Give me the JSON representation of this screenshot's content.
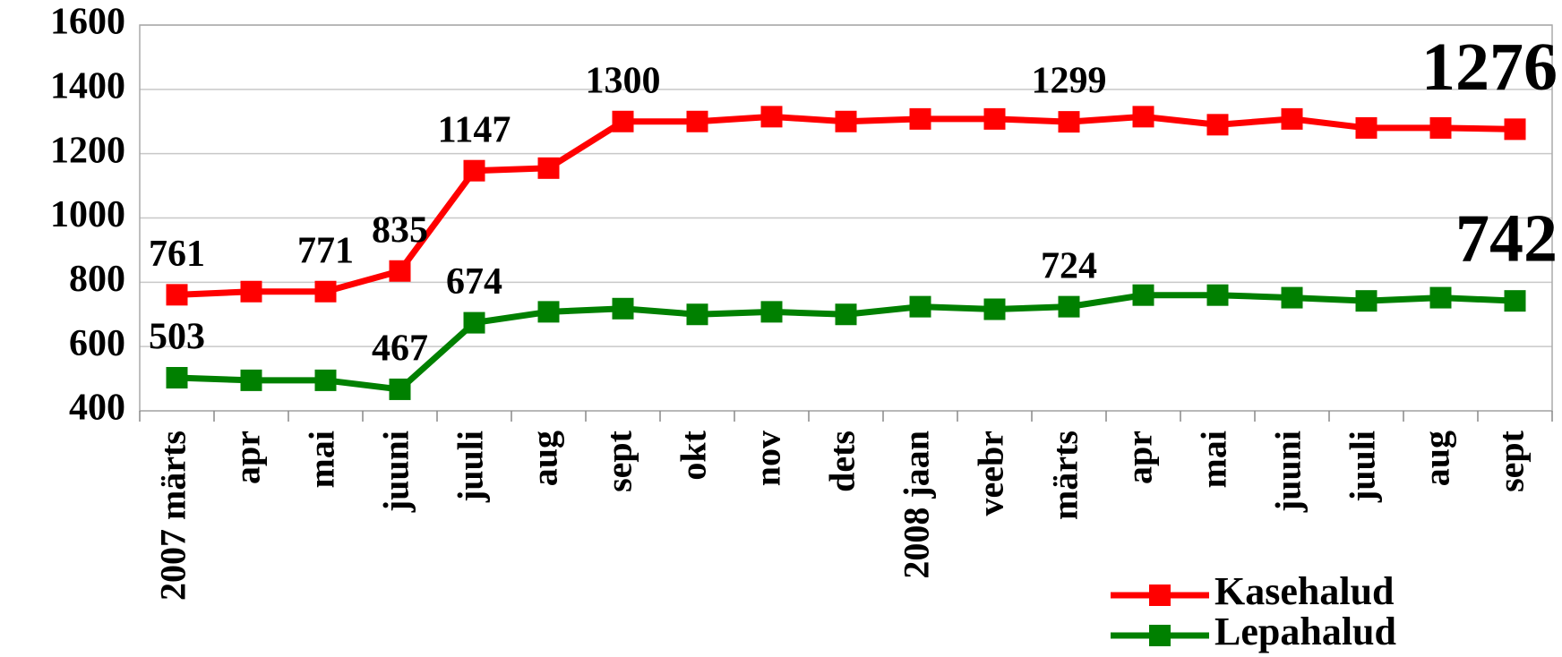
{
  "chart_data": {
    "type": "line",
    "categories": [
      "2007 märts",
      "apr",
      "mai",
      "juuni",
      "juuli",
      "aug",
      "sept",
      "okt",
      "nov",
      "dets",
      "2008 jaan",
      "veebr",
      "märts",
      "apr",
      "mai",
      "juuni",
      "juuli",
      "aug",
      "sept"
    ],
    "series": [
      {
        "name": "Kasehalud",
        "color": "#ff0000",
        "values": [
          761,
          771,
          771,
          835,
          1147,
          1155,
          1300,
          1300,
          1315,
          1300,
          1308,
          1308,
          1299,
          1315,
          1290,
          1308,
          1280,
          1280,
          1276
        ],
        "value_labels": [
          "761",
          null,
          "771",
          "835",
          "1147",
          null,
          "1300",
          null,
          null,
          null,
          null,
          null,
          "1299",
          null,
          null,
          null,
          null,
          null,
          "1276"
        ]
      },
      {
        "name": "Lepahalud",
        "color": "#008000",
        "values": [
          503,
          495,
          495,
          467,
          674,
          708,
          718,
          700,
          708,
          700,
          724,
          716,
          724,
          760,
          760,
          752,
          742,
          752,
          742
        ],
        "value_labels": [
          "503",
          null,
          null,
          "467",
          "674",
          null,
          null,
          null,
          null,
          null,
          null,
          null,
          "724",
          null,
          null,
          null,
          null,
          null,
          "742"
        ]
      }
    ],
    "ylim": [
      400,
      1600
    ],
    "yticks": [
      400,
      600,
      800,
      1000,
      1200,
      1400,
      1600
    ],
    "grid": true,
    "legend": "bottom-right"
  }
}
